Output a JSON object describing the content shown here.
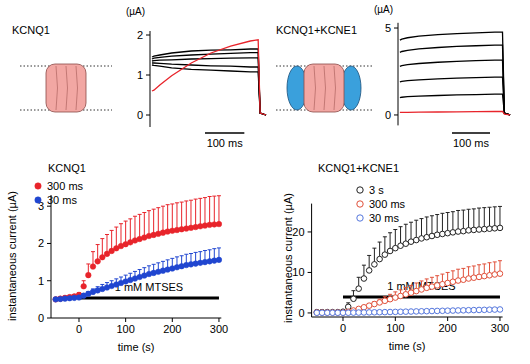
{
  "chart_data": [
    {
      "type": "line",
      "title": "KCNQ1",
      "y_label": "(µA)",
      "x": [
        0,
        5,
        20,
        50,
        100,
        150,
        200,
        250,
        270,
        275,
        290
      ],
      "xlim": [
        -5,
        295
      ],
      "ylim": [
        -0.3,
        2.1
      ],
      "yticks": [
        0,
        1,
        2
      ],
      "tick_labels": "y",
      "scale_bar": {
        "value": 100,
        "label": "100 ms"
      },
      "series": [
        {
          "color": "#000000",
          "values": [
            1.45,
            1.47,
            1.5,
            1.55,
            1.6,
            1.62,
            1.63,
            1.65,
            1.65,
            0.05,
            0
          ]
        },
        {
          "color": "#000000",
          "values": [
            1.4,
            1.42,
            1.44,
            1.47,
            1.5,
            1.52,
            1.54,
            1.56,
            1.56,
            0.05,
            0
          ]
        },
        {
          "color": "#000000",
          "values": [
            1.35,
            1.36,
            1.37,
            1.38,
            1.4,
            1.41,
            1.42,
            1.43,
            1.43,
            0.05,
            0
          ]
        },
        {
          "color": "#000000",
          "values": [
            1.3,
            1.3,
            1.29,
            1.27,
            1.25,
            1.23,
            1.22,
            1.2,
            1.2,
            0.05,
            0
          ]
        },
        {
          "color": "#000000",
          "values": [
            1.25,
            1.24,
            1.22,
            1.18,
            1.14,
            1.12,
            1.1,
            1.08,
            1.08,
            0.05,
            0
          ]
        },
        {
          "color": "#e8242b",
          "values": [
            0.6,
            0.62,
            0.75,
            0.98,
            1.3,
            1.55,
            1.72,
            1.85,
            1.88,
            0.05,
            0
          ]
        }
      ]
    },
    {
      "type": "line",
      "title": "KCNQ1+KCNE1",
      "y_label": "(µA)",
      "x": [
        0,
        5,
        20,
        50,
        100,
        150,
        200,
        250,
        270,
        275,
        290
      ],
      "xlim": [
        -5,
        295
      ],
      "ylim": [
        -0.6,
        5.3
      ],
      "yticks": [
        0,
        5
      ],
      "tick_labels": "y",
      "scale_bar": {
        "value": 100,
        "label": "100 ms"
      },
      "series": [
        {
          "color": "#000000",
          "values": [
            1.0,
            1.02,
            1.05,
            1.08,
            1.12,
            1.15,
            1.17,
            1.2,
            1.2,
            0.1,
            0
          ]
        },
        {
          "color": "#000000",
          "values": [
            1.9,
            1.93,
            1.97,
            2.02,
            2.08,
            2.12,
            2.15,
            2.18,
            2.18,
            0.1,
            0
          ]
        },
        {
          "color": "#000000",
          "values": [
            2.8,
            2.84,
            2.9,
            2.96,
            3.03,
            3.08,
            3.12,
            3.15,
            3.15,
            0.1,
            0
          ]
        },
        {
          "color": "#000000",
          "values": [
            3.6,
            3.65,
            3.72,
            3.8,
            3.88,
            3.94,
            3.98,
            4.02,
            4.02,
            0.1,
            0
          ]
        },
        {
          "color": "#000000",
          "values": [
            4.3,
            4.36,
            4.44,
            4.53,
            4.62,
            4.68,
            4.72,
            4.76,
            4.76,
            0.1,
            0
          ]
        },
        {
          "color": "#e8242b",
          "values": [
            0.15,
            0.15,
            0.15,
            0.16,
            0.17,
            0.18,
            0.19,
            0.2,
            0.2,
            0.05,
            0
          ]
        }
      ]
    },
    {
      "type": "scatter",
      "title": "KCNQ1",
      "x_label": "time (s)",
      "y_label": "instantaneous current (µA)",
      "x": [
        -50,
        -40,
        -30,
        -20,
        -10,
        0,
        10,
        20,
        30,
        40,
        50,
        60,
        70,
        80,
        90,
        100,
        110,
        120,
        130,
        140,
        150,
        160,
        170,
        180,
        190,
        200,
        210,
        220,
        230,
        240,
        250,
        260,
        270,
        280,
        290,
        300
      ],
      "xlim": [
        -60,
        305
      ],
      "ylim": [
        0,
        3.3
      ],
      "xticks": [
        0,
        100,
        200,
        300
      ],
      "yticks": [
        0,
        1,
        2,
        3
      ],
      "legend": "upper left",
      "marker": "circle",
      "annotations": [
        {
          "text": "1 mM MTSES",
          "x": [
            0,
            300
          ]
        }
      ],
      "series": [
        {
          "name": "300 ms",
          "color": "#e8242b",
          "values": [
            0.5,
            0.52,
            0.54,
            0.56,
            0.58,
            0.62,
            0.85,
            1.15,
            1.38,
            1.52,
            1.63,
            1.72,
            1.8,
            1.87,
            1.93,
            1.98,
            2.03,
            2.08,
            2.12,
            2.16,
            2.2,
            2.23,
            2.26,
            2.29,
            2.32,
            2.34,
            2.36,
            2.38,
            2.4,
            2.42,
            2.44,
            2.46,
            2.48,
            2.5,
            2.51,
            2.52
          ],
          "errors": [
            0.04,
            0.04,
            0.05,
            0.05,
            0.05,
            0.06,
            0.15,
            0.3,
            0.4,
            0.45,
            0.5,
            0.52,
            0.55,
            0.57,
            0.6,
            0.62,
            0.63,
            0.65,
            0.66,
            0.67,
            0.68,
            0.69,
            0.7,
            0.71,
            0.72,
            0.72,
            0.73,
            0.73,
            0.74,
            0.74,
            0.75,
            0.75,
            0.75,
            0.76,
            0.76,
            0.76
          ]
        },
        {
          "name": "30 ms",
          "color": "#2046d0",
          "values": [
            0.5,
            0.51,
            0.52,
            0.53,
            0.54,
            0.55,
            0.6,
            0.65,
            0.7,
            0.74,
            0.78,
            0.82,
            0.86,
            0.9,
            0.94,
            0.98,
            1.02,
            1.06,
            1.1,
            1.14,
            1.18,
            1.21,
            1.24,
            1.27,
            1.3,
            1.33,
            1.36,
            1.39,
            1.42,
            1.44,
            1.46,
            1.48,
            1.5,
            1.52,
            1.54,
            1.56
          ],
          "errors": [
            0.03,
            0.03,
            0.03,
            0.03,
            0.03,
            0.04,
            0.05,
            0.06,
            0.08,
            0.1,
            0.12,
            0.13,
            0.14,
            0.15,
            0.16,
            0.17,
            0.18,
            0.19,
            0.2,
            0.21,
            0.22,
            0.23,
            0.24,
            0.25,
            0.26,
            0.27,
            0.28,
            0.28,
            0.29,
            0.29,
            0.3,
            0.3,
            0.31,
            0.31,
            0.32,
            0.32
          ]
        }
      ]
    },
    {
      "type": "scatter",
      "title": "KCNQ1+KCNE1",
      "x_label": "time (s)",
      "y_label": "instantaneous current (µA)",
      "x": [
        -50,
        -40,
        -30,
        -20,
        -10,
        0,
        10,
        20,
        30,
        40,
        50,
        60,
        70,
        80,
        90,
        100,
        110,
        120,
        130,
        140,
        150,
        160,
        170,
        180,
        190,
        200,
        210,
        220,
        230,
        240,
        250,
        260,
        270,
        280,
        290,
        300
      ],
      "xlim": [
        -60,
        305
      ],
      "ylim": [
        -1,
        27
      ],
      "xticks": [
        0,
        100,
        200,
        300
      ],
      "yticks": [
        0,
        10,
        20
      ],
      "legend": "upper left",
      "marker": "open-circle",
      "annotations": [
        {
          "text": "1 mM MTSES",
          "x": [
            0,
            300
          ]
        }
      ],
      "series": [
        {
          "name": "3 s",
          "color": "#222222",
          "values": [
            0.2,
            0.2,
            0.2,
            0.2,
            0.2,
            0.3,
            1.5,
            3.5,
            6,
            8.5,
            10.5,
            12,
            13.3,
            14.4,
            15.3,
            16,
            16.6,
            17.1,
            17.6,
            18,
            18.4,
            18.7,
            19,
            19.3,
            19.5,
            19.7,
            19.9,
            20.1,
            20.2,
            20.4,
            20.5,
            20.6,
            20.7,
            20.8,
            20.9,
            21
          ],
          "errors": [
            0.1,
            0.1,
            0.1,
            0.1,
            0.1,
            0.2,
            1,
            2,
            2.8,
            3.3,
            3.7,
            4,
            4.2,
            4.4,
            4.5,
            4.6,
            4.7,
            4.8,
            4.8,
            4.9,
            4.9,
            5,
            5,
            5,
            5.1,
            5.1,
            5.1,
            5.2,
            5.2,
            5.2,
            5.2,
            5.3,
            5.3,
            5.3,
            5.3,
            5.3
          ]
        },
        {
          "name": "300 ms",
          "color": "#e0503a",
          "values": [
            0.1,
            0.1,
            0.1,
            0.1,
            0.1,
            0.1,
            0.3,
            0.6,
            1,
            1.4,
            1.8,
            2.2,
            2.6,
            3,
            3.4,
            3.8,
            4.2,
            4.6,
            5,
            5.4,
            5.8,
            6.2,
            6.5,
            6.8,
            7.1,
            7.4,
            7.7,
            8,
            8.2,
            8.5,
            8.7,
            8.9,
            9.1,
            9.3,
            9.5,
            9.7
          ],
          "errors": [
            0.05,
            0.05,
            0.05,
            0.05,
            0.05,
            0.05,
            0.1,
            0.2,
            0.3,
            0.4,
            0.5,
            0.6,
            0.8,
            1,
            1.2,
            1.4,
            1.5,
            1.7,
            1.8,
            2,
            2.1,
            2.2,
            2.3,
            2.4,
            2.5,
            2.6,
            2.7,
            2.8,
            2.8,
            2.9,
            2.9,
            3,
            3,
            3.1,
            3.1,
            3.2
          ]
        },
        {
          "name": "30 ms",
          "color": "#5577dd",
          "values": [
            0.05,
            0.05,
            0.05,
            0.05,
            0.05,
            0.05,
            0.06,
            0.08,
            0.1,
            0.12,
            0.14,
            0.16,
            0.18,
            0.2,
            0.23,
            0.26,
            0.29,
            0.32,
            0.35,
            0.38,
            0.41,
            0.44,
            0.47,
            0.5,
            0.53,
            0.56,
            0.59,
            0.62,
            0.65,
            0.68,
            0.71,
            0.74,
            0.77,
            0.8,
            0.83,
            0.86
          ],
          "errors": [
            0.02,
            0.02,
            0.02,
            0.02,
            0.02,
            0.02,
            0.02,
            0.03,
            0.03,
            0.04,
            0.04,
            0.05,
            0.05,
            0.06,
            0.06,
            0.07,
            0.07,
            0.08,
            0.08,
            0.09,
            0.09,
            0.1,
            0.1,
            0.11,
            0.11,
            0.12,
            0.12,
            0.13,
            0.13,
            0.14,
            0.14,
            0.15,
            0.15,
            0.16,
            0.16,
            0.17
          ]
        }
      ]
    }
  ]
}
